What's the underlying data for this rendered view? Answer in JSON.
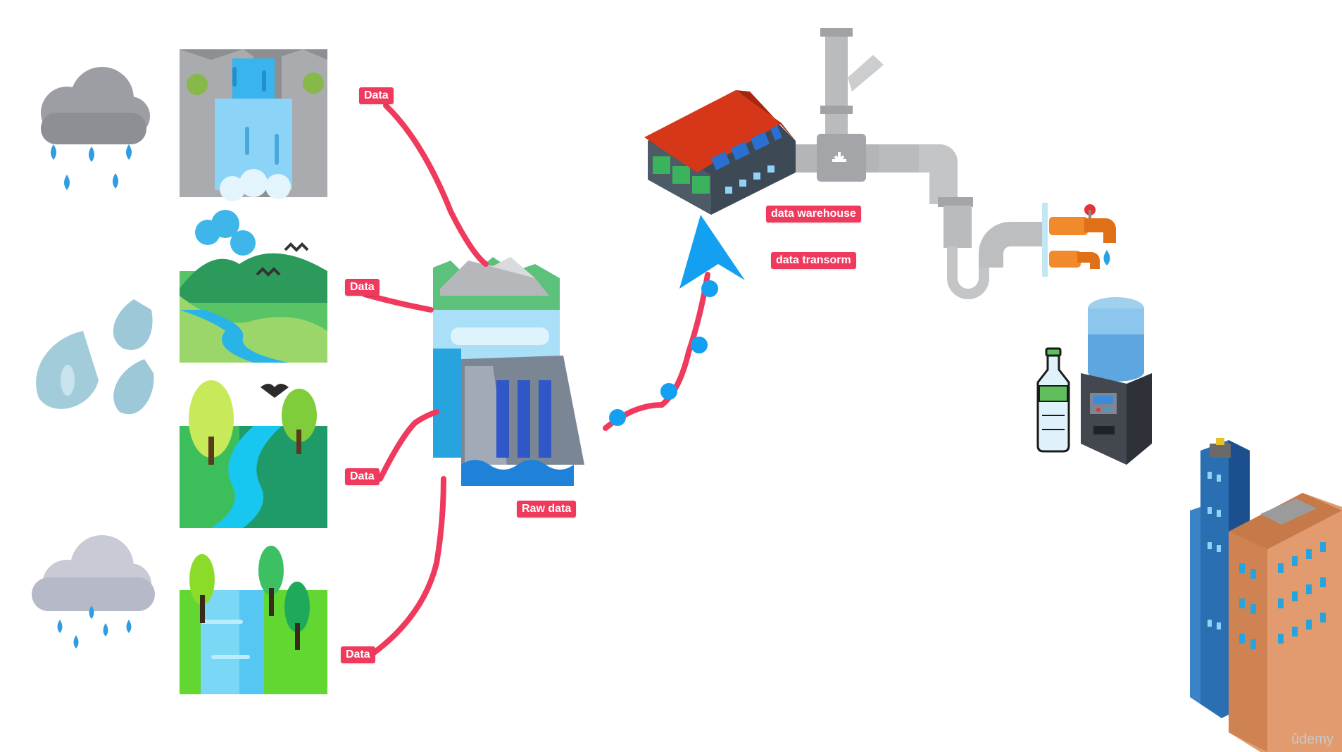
{
  "labels": {
    "data_1": "Data",
    "data_2": "Data",
    "data_3": "Data",
    "data_4": "Data",
    "raw_data": "Raw data",
    "data_warehouse": "data warehouse",
    "data_transform": "data transorm"
  },
  "watermark": "ûdemy",
  "colors": {
    "annotation_pink": "#ef3a5d",
    "arrow_blue": "#14a0f0",
    "pipe_gray": "#b9bbbd"
  },
  "icons": [
    "rain-cloud-icon",
    "waterfall-icon",
    "water-drops-icon",
    "river-valley-icon",
    "river-forest-icon",
    "rain-cloud-2-icon",
    "river-trees-icon",
    "dam-icon",
    "warehouse-icon",
    "pipe-icon",
    "faucet-icon",
    "water-cooler-icon",
    "bottle-icon",
    "buildings-icon"
  ]
}
